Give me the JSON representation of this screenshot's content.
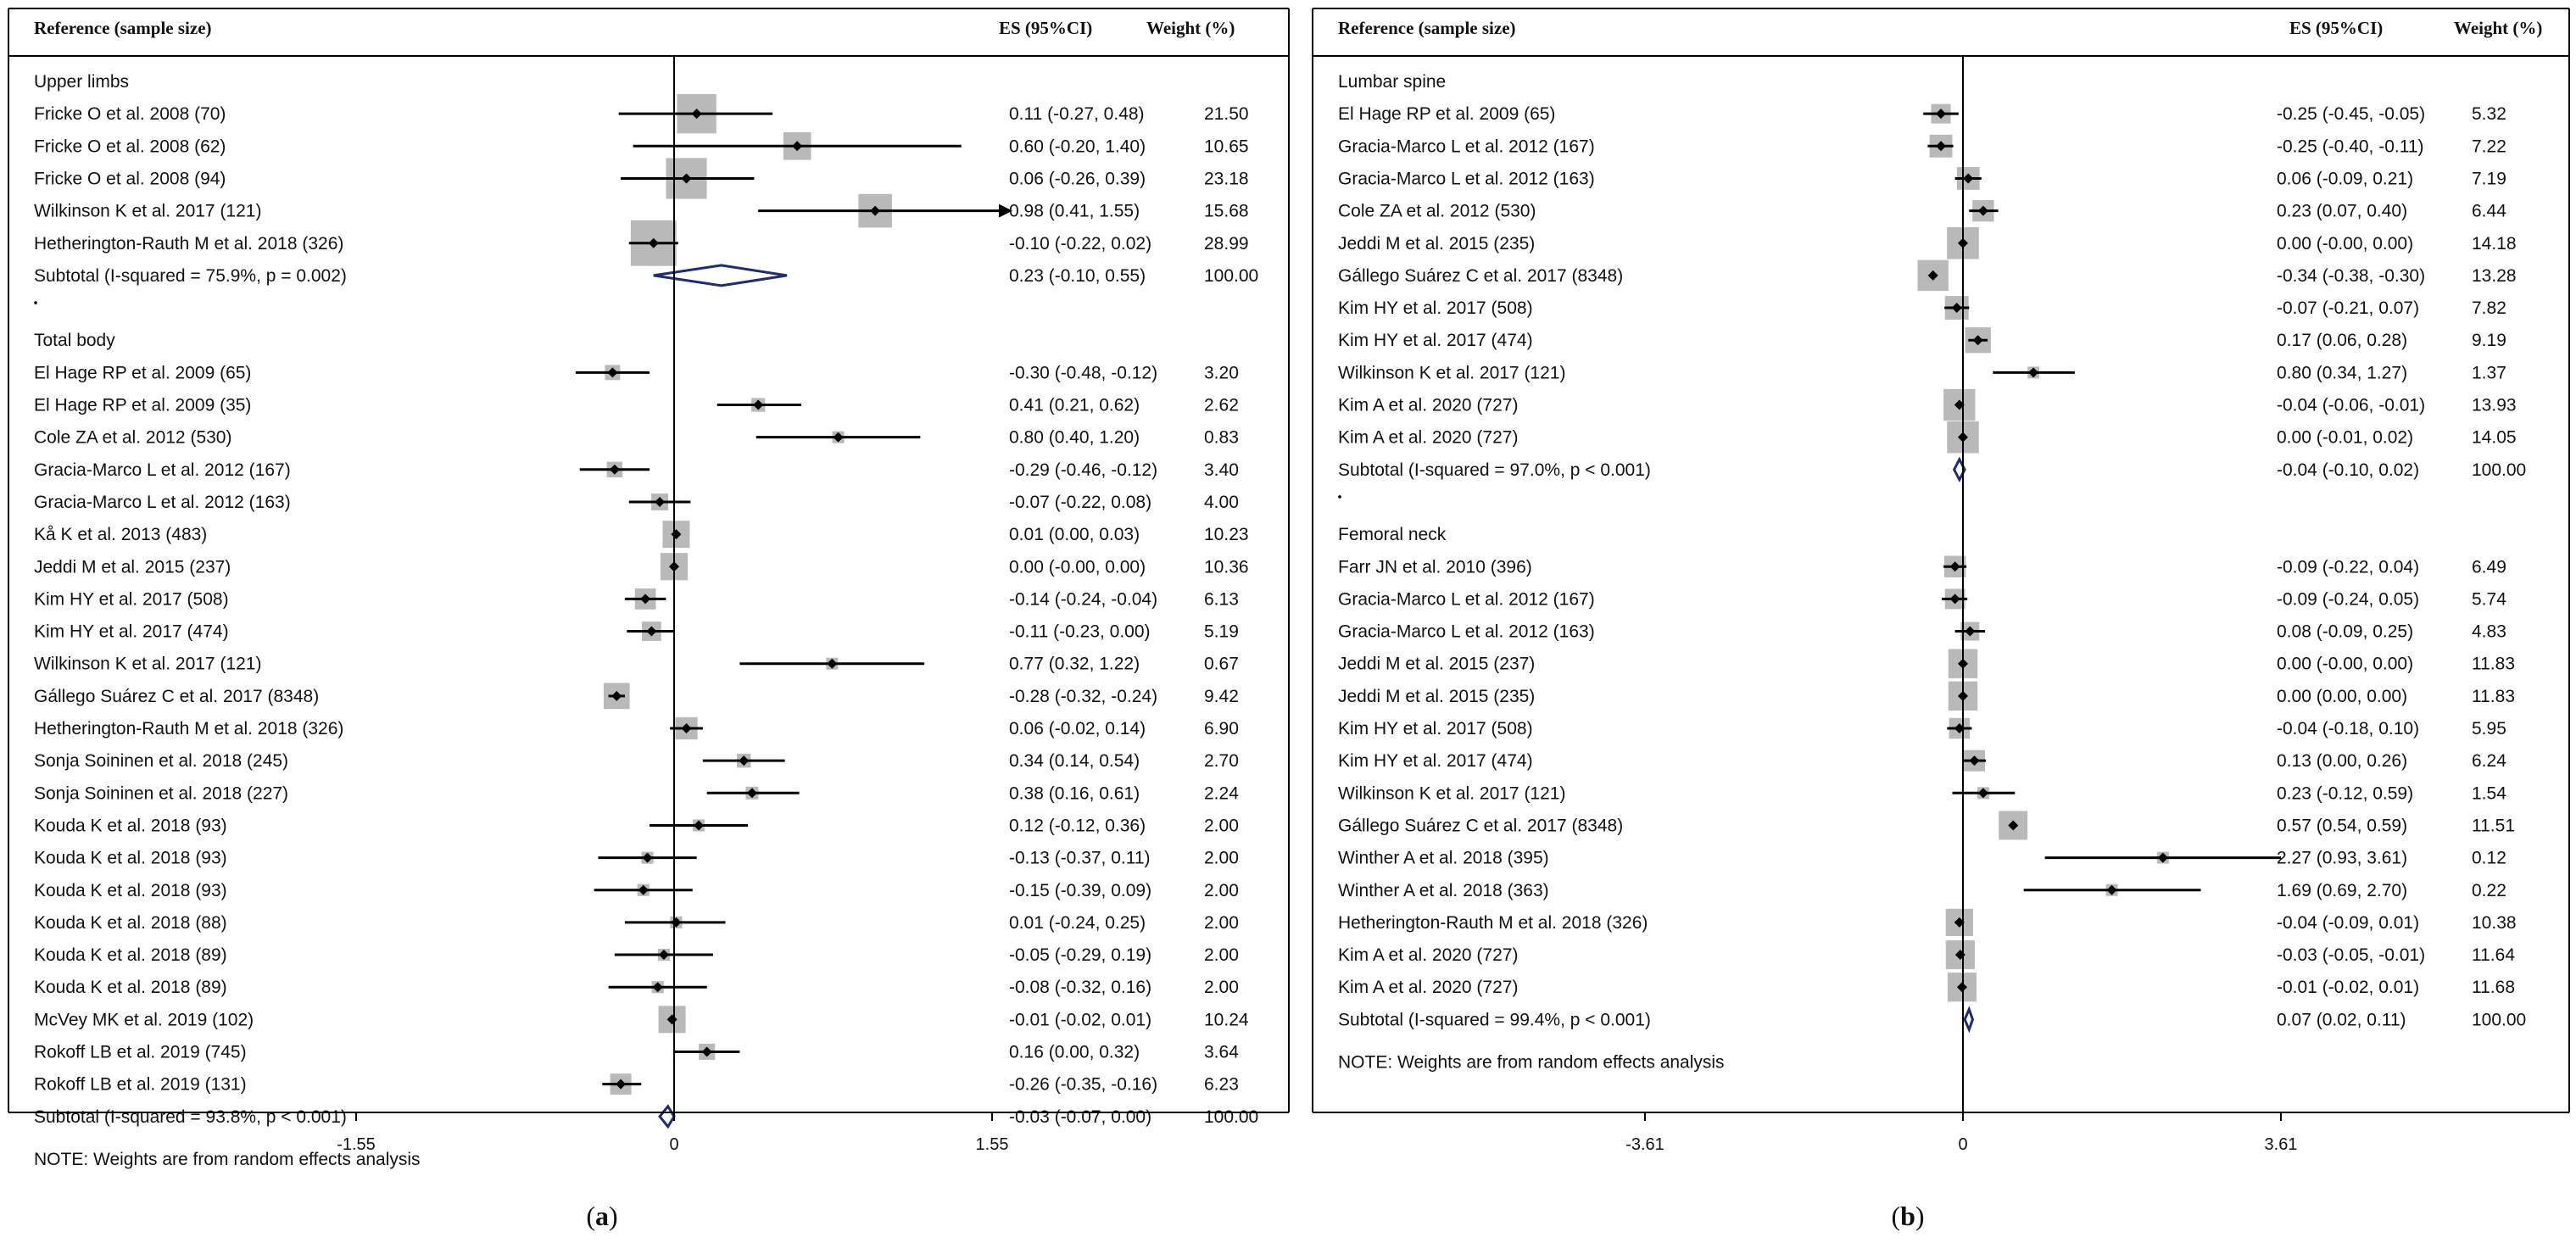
{
  "chart_data": [
    {
      "type": "forest",
      "panel_label": "a",
      "header": {
        "reference": "Reference (sample size)",
        "es": "ES (95%CI)",
        "weight": "Weight  (%)"
      },
      "xlim": [
        -1.9,
        2.7
      ],
      "xticks": [
        -1.55,
        0,
        1.55
      ],
      "xtick_labels": [
        "-1.55",
        "0",
        "1.55"
      ],
      "note": "NOTE: Weights are from random effects analysis",
      "groups": [
        {
          "title": "Upper limbs",
          "rows": [
            {
              "label": "Fricke O et al. 2008 (70)",
              "es": 0.11,
              "lo": -0.27,
              "hi": 0.48,
              "ci_text": "0.11 (-0.27, 0.48)",
              "weight": "21.50"
            },
            {
              "label": "Fricke O et al. 2008 (62)",
              "es": 0.6,
              "lo": -0.2,
              "hi": 1.4,
              "ci_text": "0.60 (-0.20, 1.40)",
              "weight": "10.65"
            },
            {
              "label": "Fricke O et al. 2008 (94)",
              "es": 0.06,
              "lo": -0.26,
              "hi": 0.39,
              "ci_text": "0.06 (-0.26, 0.39)",
              "weight": "23.18"
            },
            {
              "label": "Wilkinson K et al. 2017 (121)",
              "es": 0.98,
              "lo": 0.41,
              "hi": 1.55,
              "ci_text": "0.98 (0.41, 1.55)",
              "weight": "15.68",
              "arrow": true
            },
            {
              "label": "Hetherington-Rauth M  et al. 2018 (326)",
              "es": -0.1,
              "lo": -0.22,
              "hi": 0.02,
              "ci_text": "-0.10 (-0.22, 0.02)",
              "weight": "28.99"
            }
          ],
          "subtotal": {
            "label": "Subtotal  (I-squared = 75.9%, p = 0.002)",
            "es": 0.23,
            "lo": -0.1,
            "hi": 0.55,
            "ci_text": "0.23 (-0.10, 0.55)",
            "weight": "100.00"
          }
        },
        {
          "title": "Total body",
          "rows": [
            {
              "label": "El Hage RP et al. 2009 (65)",
              "es": -0.3,
              "lo": -0.48,
              "hi": -0.12,
              "ci_text": "-0.30 (-0.48, -0.12)",
              "weight": "3.20"
            },
            {
              "label": "El Hage RP et al. 2009 (35)",
              "es": 0.41,
              "lo": 0.21,
              "hi": 0.62,
              "ci_text": "0.41 (0.21, 0.62)",
              "weight": "2.62"
            },
            {
              "label": "Cole ZA et al. 2012 (530)",
              "es": 0.8,
              "lo": 0.4,
              "hi": 1.2,
              "ci_text": "0.80 (0.40, 1.20)",
              "weight": "0.83"
            },
            {
              "label": "Gracia-Marco L et al. 2012 (167)",
              "es": -0.29,
              "lo": -0.46,
              "hi": -0.12,
              "ci_text": "-0.29 (-0.46, -0.12)",
              "weight": "3.40"
            },
            {
              "label": "Gracia-Marco L et al. 2012 (163)",
              "es": -0.07,
              "lo": -0.22,
              "hi": 0.08,
              "ci_text": "-0.07 (-0.22, 0.08)",
              "weight": "4.00"
            },
            {
              "label": "Kå K et al. 2013 (483)",
              "es": 0.01,
              "lo": 0.0,
              "hi": 0.03,
              "ci_text": "0.01 (0.00, 0.03)",
              "weight": "10.23"
            },
            {
              "label": "Jeddi M et al. 2015 (237)",
              "es": 0.0,
              "lo": -0.0,
              "hi": 0.0,
              "ci_text": "0.00 (-0.00, 0.00)",
              "weight": "10.36"
            },
            {
              "label": "Kim HY et al. 2017 (508)",
              "es": -0.14,
              "lo": -0.24,
              "hi": -0.04,
              "ci_text": "-0.14 (-0.24, -0.04)",
              "weight": "6.13"
            },
            {
              "label": "Kim HY et al. 2017 (474)",
              "es": -0.11,
              "lo": -0.23,
              "hi": 0.0,
              "ci_text": "-0.11 (-0.23, 0.00)",
              "weight": "5.19"
            },
            {
              "label": "Wilkinson K et al. 2017 (121)",
              "es": 0.77,
              "lo": 0.32,
              "hi": 1.22,
              "ci_text": "0.77 (0.32, 1.22)",
              "weight": "0.67"
            },
            {
              "label": "Gállego Suárez C et al. 2017 (8348)",
              "es": -0.28,
              "lo": -0.32,
              "hi": -0.24,
              "ci_text": "-0.28 (-0.32, -0.24)",
              "weight": "9.42"
            },
            {
              "label": "Hetherington-Rauth M  et al. 2018 (326)",
              "es": 0.06,
              "lo": -0.02,
              "hi": 0.14,
              "ci_text": "0.06 (-0.02, 0.14)",
              "weight": "6.90"
            },
            {
              "label": "Sonja Soininen et al. 2018 (245)",
              "es": 0.34,
              "lo": 0.14,
              "hi": 0.54,
              "ci_text": "0.34 (0.14, 0.54)",
              "weight": "2.70"
            },
            {
              "label": "Sonja Soininen et al. 2018 (227)",
              "es": 0.38,
              "lo": 0.16,
              "hi": 0.61,
              "ci_text": "0.38 (0.16, 0.61)",
              "weight": "2.24"
            },
            {
              "label": "Kouda K et al. 2018 (93)",
              "es": 0.12,
              "lo": -0.12,
              "hi": 0.36,
              "ci_text": "0.12 (-0.12, 0.36)",
              "weight": "2.00"
            },
            {
              "label": "Kouda K et al. 2018 (93)",
              "es": -0.13,
              "lo": -0.37,
              "hi": 0.11,
              "ci_text": "-0.13 (-0.37, 0.11)",
              "weight": "2.00"
            },
            {
              "label": "Kouda K et al. 2018 (93)",
              "es": -0.15,
              "lo": -0.39,
              "hi": 0.09,
              "ci_text": "-0.15 (-0.39, 0.09)",
              "weight": "2.00"
            },
            {
              "label": "Kouda K et al. 2018 (88)",
              "es": 0.01,
              "lo": -0.24,
              "hi": 0.25,
              "ci_text": "0.01 (-0.24, 0.25)",
              "weight": "2.00"
            },
            {
              "label": "Kouda K et al. 2018 (89)",
              "es": -0.05,
              "lo": -0.29,
              "hi": 0.19,
              "ci_text": "-0.05 (-0.29, 0.19)",
              "weight": "2.00"
            },
            {
              "label": "Kouda K et al. 2018 (89)",
              "es": -0.08,
              "lo": -0.32,
              "hi": 0.16,
              "ci_text": "-0.08 (-0.32, 0.16)",
              "weight": "2.00"
            },
            {
              "label": "McVey MK et al. 2019 (102)",
              "es": -0.01,
              "lo": -0.02,
              "hi": 0.01,
              "ci_text": "-0.01 (-0.02, 0.01)",
              "weight": "10.24"
            },
            {
              "label": "Rokoff LB et al. 2019 (745)",
              "es": 0.16,
              "lo": 0.0,
              "hi": 0.32,
              "ci_text": "0.16 (0.00, 0.32)",
              "weight": "3.64"
            },
            {
              "label": "Rokoff LB et al. 2019 (131)",
              "es": -0.26,
              "lo": -0.35,
              "hi": -0.16,
              "ci_text": "-0.26 (-0.35, -0.16)",
              "weight": "6.23"
            }
          ],
          "subtotal": {
            "label": "Subtotal  (I-squared = 93.8%, p < 0.001)",
            "es": -0.03,
            "lo": -0.07,
            "hi": 0.0,
            "ci_text": "-0.03 (-0.07, 0.00)",
            "weight": "100.00"
          }
        }
      ]
    },
    {
      "type": "forest",
      "panel_label": "b",
      "header": {
        "reference": "Reference (sample size)",
        "es": "ES (95%CI)",
        "weight": "Weight  (%)"
      },
      "xlim": [
        -4.9,
        6.0
      ],
      "xticks": [
        -3.61,
        0,
        3.61
      ],
      "xtick_labels": [
        "-3.61",
        "0",
        "3.61"
      ],
      "note": "NOTE: Weights are from random effects analysis",
      "groups": [
        {
          "title": "Lumbar spine",
          "rows": [
            {
              "label": "El Hage RP et al. 2009 (65)",
              "es": -0.25,
              "lo": -0.45,
              "hi": -0.05,
              "ci_text": "-0.25 (-0.45, -0.05)",
              "weight": "5.32"
            },
            {
              "label": "Gracia-Marco L et al. 2012 (167)",
              "es": -0.25,
              "lo": -0.4,
              "hi": -0.11,
              "ci_text": "-0.25 (-0.40, -0.11)",
              "weight": "7.22"
            },
            {
              "label": "Gracia-Marco L et al. 2012 (163)",
              "es": 0.06,
              "lo": -0.09,
              "hi": 0.21,
              "ci_text": "0.06 (-0.09, 0.21)",
              "weight": "7.19"
            },
            {
              "label": "Cole ZA et al. 2012 (530)",
              "es": 0.23,
              "lo": 0.07,
              "hi": 0.4,
              "ci_text": "0.23 (0.07, 0.40)",
              "weight": "6.44"
            },
            {
              "label": "Jeddi M et al. 2015 (235)",
              "es": 0.0,
              "lo": -0.0,
              "hi": 0.0,
              "ci_text": "0.00 (-0.00, 0.00)",
              "weight": "14.18"
            },
            {
              "label": "Gállego Suárez C et al. 2017 (8348)",
              "es": -0.34,
              "lo": -0.38,
              "hi": -0.3,
              "ci_text": "-0.34 (-0.38, -0.30)",
              "weight": "13.28"
            },
            {
              "label": "Kim HY et al. 2017 (508)",
              "es": -0.07,
              "lo": -0.21,
              "hi": 0.07,
              "ci_text": "-0.07 (-0.21, 0.07)",
              "weight": "7.82"
            },
            {
              "label": "Kim HY et al. 2017 (474)",
              "es": 0.17,
              "lo": 0.06,
              "hi": 0.28,
              "ci_text": "0.17 (0.06, 0.28)",
              "weight": "9.19"
            },
            {
              "label": "Wilkinson K et al. 2017 (121)",
              "es": 0.8,
              "lo": 0.34,
              "hi": 1.27,
              "ci_text": "0.80 (0.34, 1.27)",
              "weight": "1.37"
            },
            {
              "label": "Kim A et al. 2020 (727)",
              "es": -0.04,
              "lo": -0.06,
              "hi": -0.01,
              "ci_text": "-0.04 (-0.06, -0.01)",
              "weight": "13.93"
            },
            {
              "label": "Kim A et al. 2020 (727)",
              "es": 0.0,
              "lo": -0.01,
              "hi": 0.02,
              "ci_text": "0.00 (-0.01, 0.02)",
              "weight": "14.05"
            }
          ],
          "subtotal": {
            "label": "Subtotal  (I-squared = 97.0%, p < 0.001)",
            "es": -0.04,
            "lo": -0.1,
            "hi": 0.02,
            "ci_text": "-0.04 (-0.10, 0.02)",
            "weight": "100.00"
          }
        },
        {
          "title": "Femoral neck",
          "rows": [
            {
              "label": "Farr JN et al. 2010 (396)",
              "es": -0.09,
              "lo": -0.22,
              "hi": 0.04,
              "ci_text": "-0.09 (-0.22, 0.04)",
              "weight": "6.49"
            },
            {
              "label": "Gracia-Marco L et al. 2012 (167)",
              "es": -0.09,
              "lo": -0.24,
              "hi": 0.05,
              "ci_text": "-0.09 (-0.24, 0.05)",
              "weight": "5.74"
            },
            {
              "label": "Gracia-Marco L et al. 2012 (163)",
              "es": 0.08,
              "lo": -0.09,
              "hi": 0.25,
              "ci_text": "0.08 (-0.09, 0.25)",
              "weight": "4.83"
            },
            {
              "label": "Jeddi M et al. 2015 (237)",
              "es": 0.0,
              "lo": -0.0,
              "hi": 0.0,
              "ci_text": "0.00 (-0.00, 0.00)",
              "weight": "11.83"
            },
            {
              "label": "Jeddi M et al. 2015 (235)",
              "es": 0.0,
              "lo": 0.0,
              "hi": 0.0,
              "ci_text": "0.00 (0.00, 0.00)",
              "weight": "11.83"
            },
            {
              "label": "Kim HY et al. 2017 (508)",
              "es": -0.04,
              "lo": -0.18,
              "hi": 0.1,
              "ci_text": "-0.04 (-0.18, 0.10)",
              "weight": "5.95"
            },
            {
              "label": "Kim HY et al. 2017 (474)",
              "es": 0.13,
              "lo": 0.0,
              "hi": 0.26,
              "ci_text": "0.13 (0.00, 0.26)",
              "weight": "6.24"
            },
            {
              "label": "Wilkinson K et al. 2017 (121)",
              "es": 0.23,
              "lo": -0.12,
              "hi": 0.59,
              "ci_text": "0.23 (-0.12, 0.59)",
              "weight": "1.54"
            },
            {
              "label": "Gállego Suárez C et al. 2017 (8348)",
              "es": 0.57,
              "lo": 0.54,
              "hi": 0.59,
              "ci_text": "0.57 (0.54, 0.59)",
              "weight": "11.51"
            },
            {
              "label": "Winther A et al. 2018 (395)",
              "es": 2.27,
              "lo": 0.93,
              "hi": 3.61,
              "ci_text": "2.27 (0.93, 3.61)",
              "weight": "0.12"
            },
            {
              "label": "Winther A et al. 2018 (363)",
              "es": 1.69,
              "lo": 0.69,
              "hi": 2.7,
              "ci_text": "1.69 (0.69, 2.70)",
              "weight": "0.22"
            },
            {
              "label": "Hetherington-Rauth M  et al. 2018 (326)",
              "es": -0.04,
              "lo": -0.09,
              "hi": 0.01,
              "ci_text": "-0.04 (-0.09, 0.01)",
              "weight": "10.38"
            },
            {
              "label": "Kim A et al. 2020 (727)",
              "es": -0.03,
              "lo": -0.05,
              "hi": -0.01,
              "ci_text": "-0.03 (-0.05, -0.01)",
              "weight": "11.64"
            },
            {
              "label": "Kim A et al. 2020 (727)",
              "es": -0.01,
              "lo": -0.02,
              "hi": 0.01,
              "ci_text": "-0.01 (-0.02, 0.01)",
              "weight": "11.68"
            }
          ],
          "subtotal": {
            "label": "Subtotal  (I-squared = 99.4%, p < 0.001)",
            "es": 0.07,
            "lo": 0.02,
            "hi": 0.11,
            "ci_text": "0.07 (0.02, 0.11)",
            "weight": "100.00"
          }
        }
      ]
    }
  ]
}
